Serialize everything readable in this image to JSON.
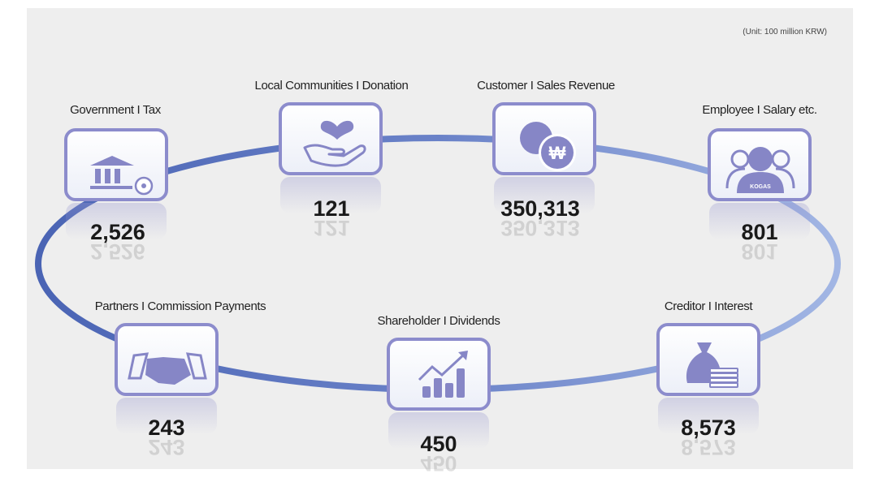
{
  "unit_note": "(Unit: 100 million KRW)",
  "nodes": [
    {
      "label": "Government  I  Tax",
      "value": "2,526"
    },
    {
      "label": "Local Communities I  Donation",
      "value": "121"
    },
    {
      "label": "Customer I  Sales Revenue",
      "value": "350,313"
    },
    {
      "label": "Employee  I  Salary etc.",
      "value": "801",
      "icon_text": "KOGAS"
    },
    {
      "label": "Partners  I  Commission Payments",
      "value": "243"
    },
    {
      "label": "Shareholder  I  Dividends",
      "value": "450"
    },
    {
      "label": "Creditor  I  Interest",
      "value": "8,573"
    }
  ],
  "currency_symbol": "₩"
}
